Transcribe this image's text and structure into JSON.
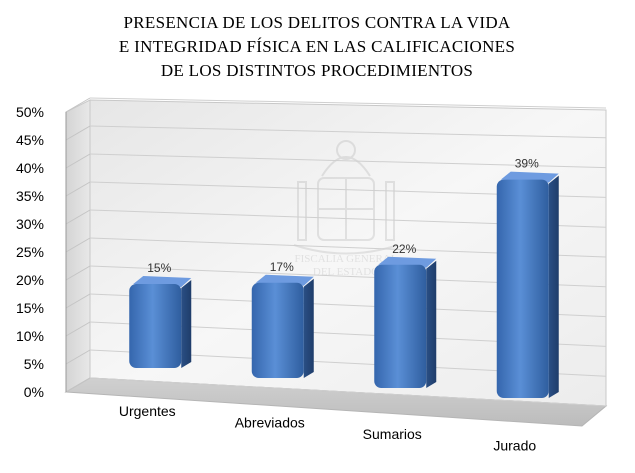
{
  "chart_data": {
    "type": "bar",
    "title_lines": [
      "PRESENCIA DE LOS DELITOS CONTRA LA VIDA",
      "E INTEGRIDAD FÍSICA EN LAS CALIFICACIONES",
      "DE LOS DISTINTOS PROCEDIMIENTOS"
    ],
    "categories": [
      "Urgentes",
      "Abreviados",
      "Sumarios",
      "Jurado"
    ],
    "values": [
      15,
      17,
      22,
      39
    ],
    "data_labels": [
      "15%",
      "17%",
      "22%",
      "39%"
    ],
    "yticks": [
      "0%",
      "5%",
      "10%",
      "15%",
      "20%",
      "25%",
      "30%",
      "35%",
      "40%",
      "45%",
      "50%"
    ],
    "ylim": [
      0,
      50
    ],
    "grid": true,
    "legend": "none",
    "bar_color": "#4a7cc4",
    "watermark_text": [
      "FISCALIA GENERAL",
      "DEL ESTADO"
    ]
  }
}
